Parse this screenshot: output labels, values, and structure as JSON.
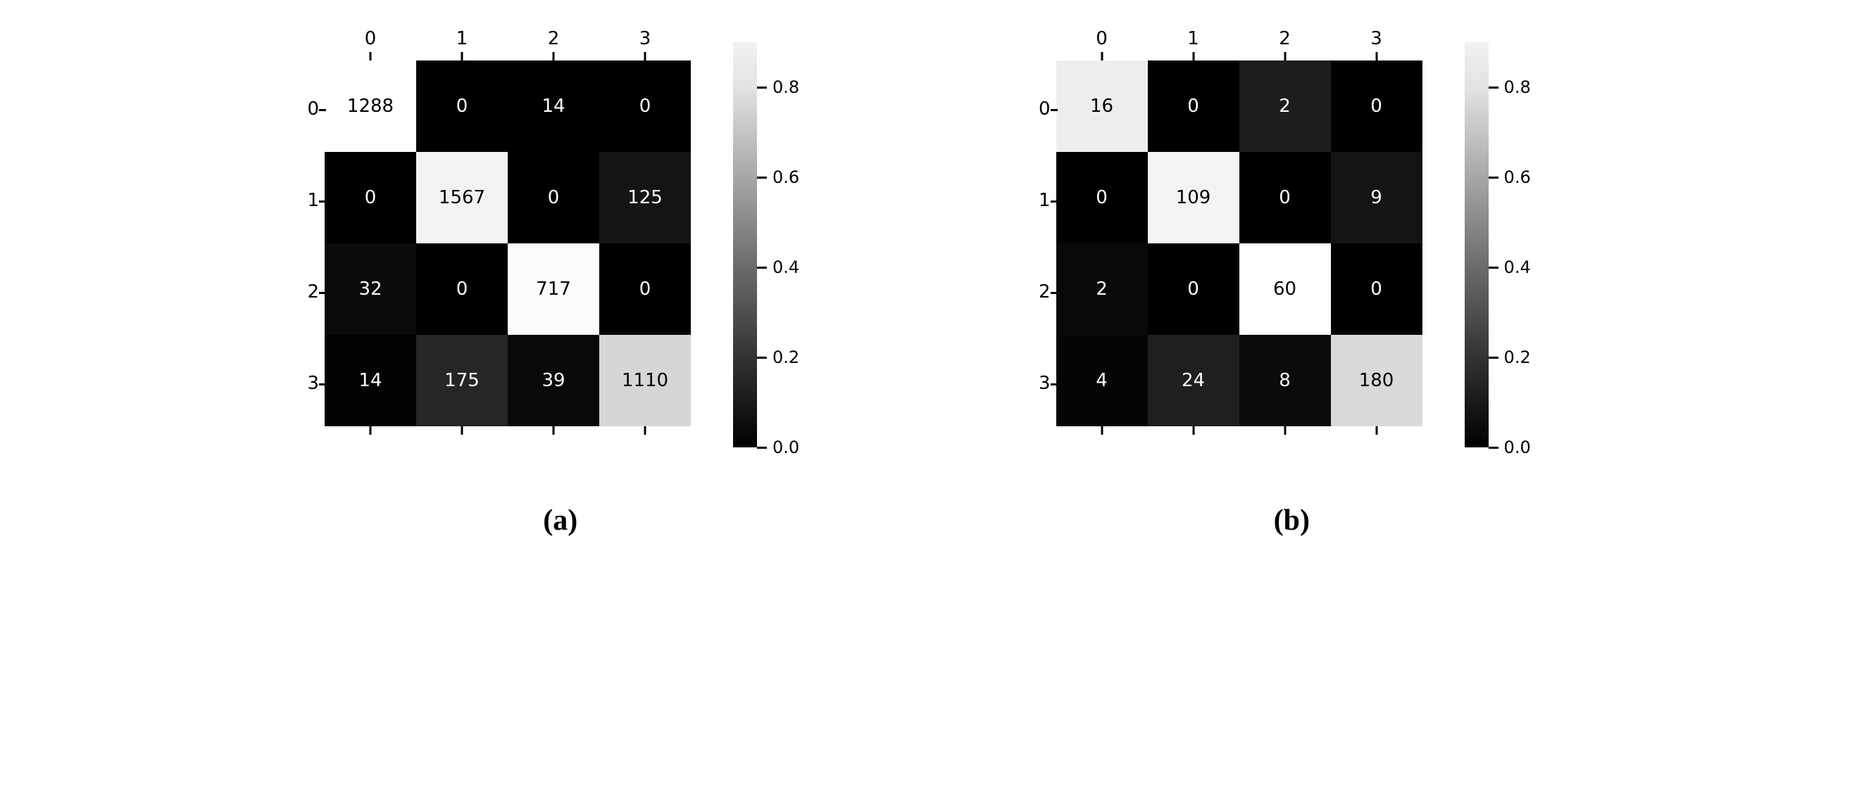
{
  "background_color": "#ffffff",
  "text_color_dark": "#000000",
  "text_color_light": "#ffffff",
  "light_text_threshold": 0.55,
  "axis_labels": [
    "0",
    "1",
    "2",
    "3"
  ],
  "cb_ticks": [
    {
      "label": "0.8",
      "value": 0.8
    },
    {
      "label": "0.6",
      "value": 0.6
    },
    {
      "label": "0.4",
      "value": 0.4
    },
    {
      "label": "0.2",
      "value": 0.2
    },
    {
      "label": "0.0",
      "value": 0.0
    }
  ],
  "cb_domain": [
    0.0,
    0.9
  ],
  "tick_fontsize": 26,
  "cell_fontsize": 26,
  "cb_label_fontsize": 24,
  "subcaption_fontsize": 42,
  "panels": [
    {
      "id": "a",
      "subcaption": "(a)",
      "colorbar_stops": [
        {
          "value": 0.9,
          "color": "#f1f1f1"
        },
        {
          "value": 0.8,
          "color": "#e3e3e3"
        },
        {
          "value": 0.6,
          "color": "#a7a7a7"
        },
        {
          "value": 0.4,
          "color": "#6b6b6b"
        },
        {
          "value": 0.2,
          "color": "#333333"
        },
        {
          "value": 0.0,
          "color": "#000000"
        }
      ],
      "cells": [
        [
          {
            "v": "1288",
            "c": "#ffffff"
          },
          {
            "v": "0",
            "c": "#000000"
          },
          {
            "v": "14",
            "c": "#000000"
          },
          {
            "v": "0",
            "c": "#000000"
          }
        ],
        [
          {
            "v": "0",
            "c": "#000000"
          },
          {
            "v": "1567",
            "c": "#f2f2f2"
          },
          {
            "v": "0",
            "c": "#000000"
          },
          {
            "v": "125",
            "c": "#141414"
          }
        ],
        [
          {
            "v": "32",
            "c": "#0b0b0b"
          },
          {
            "v": "0",
            "c": "#000000"
          },
          {
            "v": "717",
            "c": "#fbfbfb"
          },
          {
            "v": "0",
            "c": "#000000"
          }
        ],
        [
          {
            "v": "14",
            "c": "#030303"
          },
          {
            "v": "175",
            "c": "#262626"
          },
          {
            "v": "39",
            "c": "#090909"
          },
          {
            "v": "1110",
            "c": "#d6d6d6"
          }
        ]
      ]
    },
    {
      "id": "b",
      "subcaption": "(b)",
      "colorbar_stops": [
        {
          "value": 0.9,
          "color": "#f1f1f1"
        },
        {
          "value": 0.8,
          "color": "#e3e3e3"
        },
        {
          "value": 0.6,
          "color": "#a7a7a7"
        },
        {
          "value": 0.4,
          "color": "#6b6b6b"
        },
        {
          "value": 0.2,
          "color": "#333333"
        },
        {
          "value": 0.0,
          "color": "#000000"
        }
      ],
      "cells": [
        [
          {
            "v": "16",
            "c": "#ededed"
          },
          {
            "v": "0",
            "c": "#000000"
          },
          {
            "v": "2",
            "c": "#1e1e1e"
          },
          {
            "v": "0",
            "c": "#000000"
          }
        ],
        [
          {
            "v": "0",
            "c": "#000000"
          },
          {
            "v": "109",
            "c": "#f4f4f4"
          },
          {
            "v": "0",
            "c": "#000000"
          },
          {
            "v": "9",
            "c": "#141414"
          }
        ],
        [
          {
            "v": "2",
            "c": "#090909"
          },
          {
            "v": "0",
            "c": "#000000"
          },
          {
            "v": "60",
            "c": "#ffffff"
          },
          {
            "v": "0",
            "c": "#000000"
          }
        ],
        [
          {
            "v": "4",
            "c": "#050505"
          },
          {
            "v": "24",
            "c": "#1f1f1f"
          },
          {
            "v": "8",
            "c": "#0b0b0b"
          },
          {
            "v": "180",
            "c": "#d9d9d9"
          }
        ]
      ]
    }
  ]
}
